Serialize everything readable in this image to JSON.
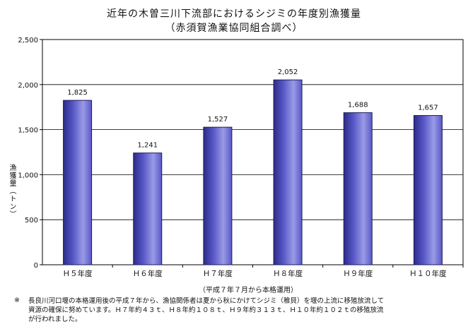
{
  "page": {
    "title": "近年の木曽三川下流部におけるシジミの年度別漁獲量",
    "subtitle": "（赤須賀漁業協同組合調べ）",
    "x_note": "（平成７年７月から本格運用）",
    "footnote_mark": "※",
    "footnote_lines": [
      "長良川河口堰の本格運用後の平成７年から、漁協関係者は夏から秋にかけてシジミ（稚貝）を堰の上流に移殖放流して",
      "資源の確保に努めています。Ｈ７年約４３ｔ、Ｈ８年約１０８ｔ、Ｈ９年約３１３ｔ、Ｈ１０年約１０２ｔの移殖放流",
      "が行われました。"
    ]
  },
  "chart_data": {
    "type": "bar",
    "title": "近年の木曽三川下流部におけるシジミの年度別漁獲量",
    "subtitle": "（赤須賀漁業協同組合調べ）",
    "ylabel": "漁獲量（トン）",
    "xlabel": "",
    "categories": [
      "Ｈ５年度",
      "Ｈ６年度",
      "Ｈ７年度",
      "Ｈ８年度",
      "Ｈ９年度",
      "Ｈ１０年度"
    ],
    "values": [
      1825,
      1241,
      1527,
      2052,
      1688,
      1657
    ],
    "value_labels": [
      "1,825",
      "1,241",
      "1,527",
      "2,052",
      "1,688",
      "1,657"
    ],
    "ylim": [
      0,
      2500
    ],
    "yticks": [
      0,
      500,
      1000,
      1500,
      2000,
      2500
    ],
    "ytick_labels": [
      "0",
      "500",
      "1,000",
      "1,500",
      "2,000",
      "2,500"
    ],
    "grid": true,
    "colors": {
      "bar": "#5858c8",
      "bar_dark": "#2c2c88",
      "bar_light": "#9a9ae6",
      "axis": "#000000"
    }
  }
}
